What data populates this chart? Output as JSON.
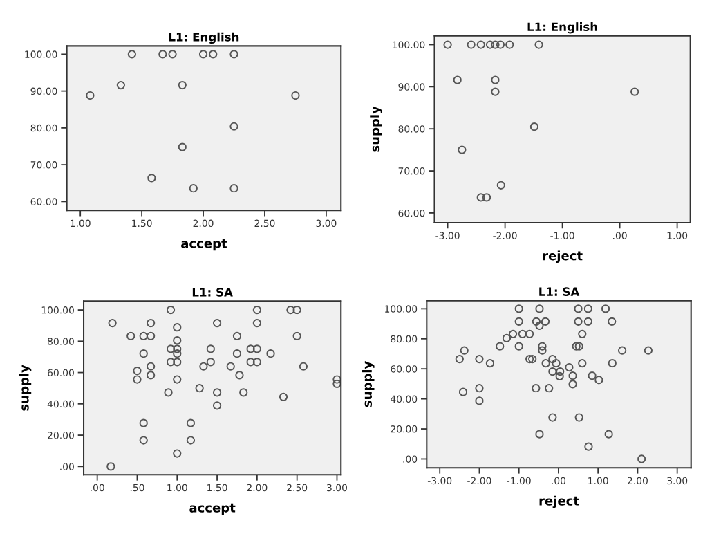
{
  "chart_data": [
    {
      "type": "scatter",
      "title": "L1: English",
      "xlabel": "accept",
      "marker": "circle",
      "grid": false,
      "xlim": [
        0.89,
        3.12
      ],
      "ylim": [
        57.6,
        102.25
      ],
      "xticks": [
        {
          "value": 1,
          "label": "1.00"
        },
        {
          "value": 1.5,
          "label": "1.50"
        },
        {
          "value": 2,
          "label": "2.00"
        },
        {
          "value": 2.5,
          "label": "2.50"
        },
        {
          "value": 3,
          "label": "3.00"
        }
      ],
      "yticks": [
        {
          "value": 60,
          "label": "60.00"
        },
        {
          "value": 70,
          "label": "70.00"
        },
        {
          "value": 80,
          "label": "80.00"
        },
        {
          "value": 90,
          "label": "90.00"
        },
        {
          "value": 100,
          "label": "100.00"
        }
      ],
      "series": [
        {
          "color": "#555555",
          "x": [
            1.42,
            1.67,
            1.75,
            2.0,
            2.08,
            2.25,
            1.08,
            1.33,
            1.83,
            2.75,
            2.25,
            1.83,
            1.58,
            1.92,
            2.25
          ],
          "values": [
            100,
            100,
            100,
            100,
            100,
            100,
            88.8,
            91.6,
            91.6,
            88.8,
            80.4,
            74.8,
            66.4,
            63.6,
            63.6
          ]
        }
      ]
    },
    {
      "type": "scatter",
      "title": "L1: English",
      "xlabel": "reject",
      "ylabel": "supply",
      "marker": "circle",
      "grid": false,
      "xlim": [
        -3.23,
        1.23
      ],
      "ylim": [
        57.7,
        102.1
      ],
      "xticks": [
        {
          "value": -3,
          "label": "-3.00"
        },
        {
          "value": -2,
          "label": "-2.00"
        },
        {
          "value": -1,
          "label": "-1.00"
        },
        {
          "value": 0,
          "label": ".00"
        },
        {
          "value": 1,
          "label": "1.00"
        }
      ],
      "yticks": [
        {
          "value": 60,
          "label": "60.00"
        },
        {
          "value": 70,
          "label": "70.00"
        },
        {
          "value": 80,
          "label": "80.00"
        },
        {
          "value": 90,
          "label": "90.00"
        },
        {
          "value": 100,
          "label": "100.00"
        }
      ],
      "series": [
        {
          "color": "#555555",
          "x": [
            -3.0,
            -2.59,
            -2.42,
            -2.26,
            -2.17,
            -2.08,
            -1.92,
            -1.41,
            -2.83,
            -2.17,
            -2.17,
            0.26,
            -1.49,
            -2.75,
            -2.07,
            -2.42,
            -2.32
          ],
          "values": [
            100,
            100,
            100,
            100,
            100,
            100,
            100,
            100,
            91.6,
            91.6,
            88.8,
            88.8,
            80.5,
            75.0,
            66.6,
            63.7,
            63.7
          ]
        }
      ]
    },
    {
      "type": "scatter",
      "title": "L1: SA",
      "xlabel": "accept",
      "ylabel": "supply",
      "marker": "circle",
      "grid": false,
      "xlim": [
        -0.17,
        3.05
      ],
      "ylim": [
        -5.3,
        105.6
      ],
      "xticks": [
        {
          "value": 0,
          "label": ".00"
        },
        {
          "value": 0.5,
          "label": ".50"
        },
        {
          "value": 1,
          "label": "1.00"
        },
        {
          "value": 1.5,
          "label": "1.50"
        },
        {
          "value": 2,
          "label": "2.00"
        },
        {
          "value": 2.5,
          "label": "2.50"
        },
        {
          "value": 3,
          "label": "3.00"
        }
      ],
      "yticks": [
        {
          "value": 0,
          "label": ".00"
        },
        {
          "value": 20,
          "label": "20.00"
        },
        {
          "value": 40,
          "label": "40.00"
        },
        {
          "value": 60,
          "label": "60.00"
        },
        {
          "value": 80,
          "label": "80.00"
        },
        {
          "value": 100,
          "label": "100.00"
        }
      ],
      "series": [
        {
          "color": "#555555",
          "x": [
            0.17,
            0.19,
            0.42,
            0.58,
            0.67,
            0.67,
            0.58,
            0.5,
            0.5,
            0.67,
            0.67,
            0.58,
            0.58,
            0.92,
            1.0,
            1.0,
            0.92,
            1.0,
            1.0,
            0.92,
            1.0,
            1.0,
            0.89,
            1.0,
            1.17,
            1.17,
            1.28,
            1.33,
            1.42,
            1.42,
            1.5,
            1.5,
            1.5,
            1.67,
            1.75,
            1.75,
            1.78,
            1.83,
            1.92,
            2.0,
            1.92,
            2.0,
            2.0,
            2.0,
            2.17,
            2.33,
            2.42,
            2.5,
            2.5,
            2.58,
            3.0,
            3.0
          ],
          "values": [
            0,
            91.6,
            83.3,
            83.3,
            83.3,
            91.6,
            72.1,
            61.1,
            55.6,
            63.9,
            58.3,
            27.7,
            16.7,
            100,
            88.9,
            80.5,
            75.1,
            75.1,
            72.1,
            66.7,
            66.7,
            55.6,
            47.3,
            8.3,
            27.7,
            16.7,
            50.0,
            63.9,
            75.1,
            66.7,
            91.6,
            47.3,
            38.9,
            63.9,
            83.3,
            72.1,
            58.3,
            47.3,
            75.1,
            75.1,
            66.7,
            66.7,
            100,
            91.6,
            72.1,
            44.4,
            100,
            100,
            83.3,
            63.9,
            55.6,
            52.8
          ]
        }
      ]
    },
    {
      "type": "scatter",
      "title": "L1: SA",
      "xlabel": "reject",
      "ylabel": "supply",
      "marker": "circle",
      "grid": false,
      "xlim": [
        -3.33,
        3.35
      ],
      "ylim": [
        -5.9,
        105.4
      ],
      "xticks": [
        {
          "value": -3,
          "label": "-3.00"
        },
        {
          "value": -2,
          "label": "-2.00"
        },
        {
          "value": -1,
          "label": "-1.00"
        },
        {
          "value": 0,
          "label": ".00"
        },
        {
          "value": 1,
          "label": "1.00"
        },
        {
          "value": 2,
          "label": "2.00"
        },
        {
          "value": 3,
          "label": "3.00"
        }
      ],
      "yticks": [
        {
          "value": 0,
          "label": ".00"
        },
        {
          "value": 20,
          "label": "20.00"
        },
        {
          "value": 40,
          "label": "40.00"
        },
        {
          "value": 60,
          "label": "60.00"
        },
        {
          "value": 80,
          "label": "80.00"
        },
        {
          "value": 100,
          "label": "100.00"
        }
      ],
      "series": [
        {
          "color": "#555555",
          "x": [
            -1.0,
            -0.48,
            0.5,
            0.75,
            1.19,
            -1.0,
            -0.56,
            -0.33,
            -0.48,
            0.5,
            0.75,
            1.35,
            -1.15,
            -0.91,
            -0.73,
            -1.31,
            0.6,
            -1.48,
            -1.0,
            -0.41,
            -0.41,
            0.45,
            0.52,
            -2.38,
            1.61,
            2.27,
            -2.5,
            -2.0,
            -1.73,
            -0.73,
            -0.66,
            -0.15,
            -0.32,
            -0.06,
            0.6,
            1.36,
            -0.15,
            0.04,
            0.03,
            0.27,
            0.36,
            0.36,
            0.85,
            1.02,
            -2.41,
            -2.0,
            -2.0,
            -0.57,
            -0.24,
            -0.15,
            0.52,
            -0.48,
            1.27,
            0.76,
            2.1
          ],
          "values": [
            100,
            100,
            100,
            100,
            100,
            91.5,
            91.5,
            91.5,
            88.7,
            91.5,
            91.5,
            91.5,
            83.2,
            83.2,
            83.2,
            80.4,
            83.2,
            75.0,
            75.0,
            75.0,
            72.2,
            75.0,
            75.0,
            72.2,
            72.2,
            72.2,
            66.5,
            66.5,
            63.7,
            66.5,
            66.5,
            66.5,
            63.7,
            63.7,
            63.7,
            63.7,
            58.2,
            58.2,
            55.1,
            61.0,
            55.4,
            49.8,
            55.4,
            52.6,
            44.6,
            47.1,
            38.7,
            47.1,
            47.1,
            27.6,
            27.6,
            16.5,
            16.5,
            8.2,
            0
          ]
        }
      ]
    }
  ]
}
